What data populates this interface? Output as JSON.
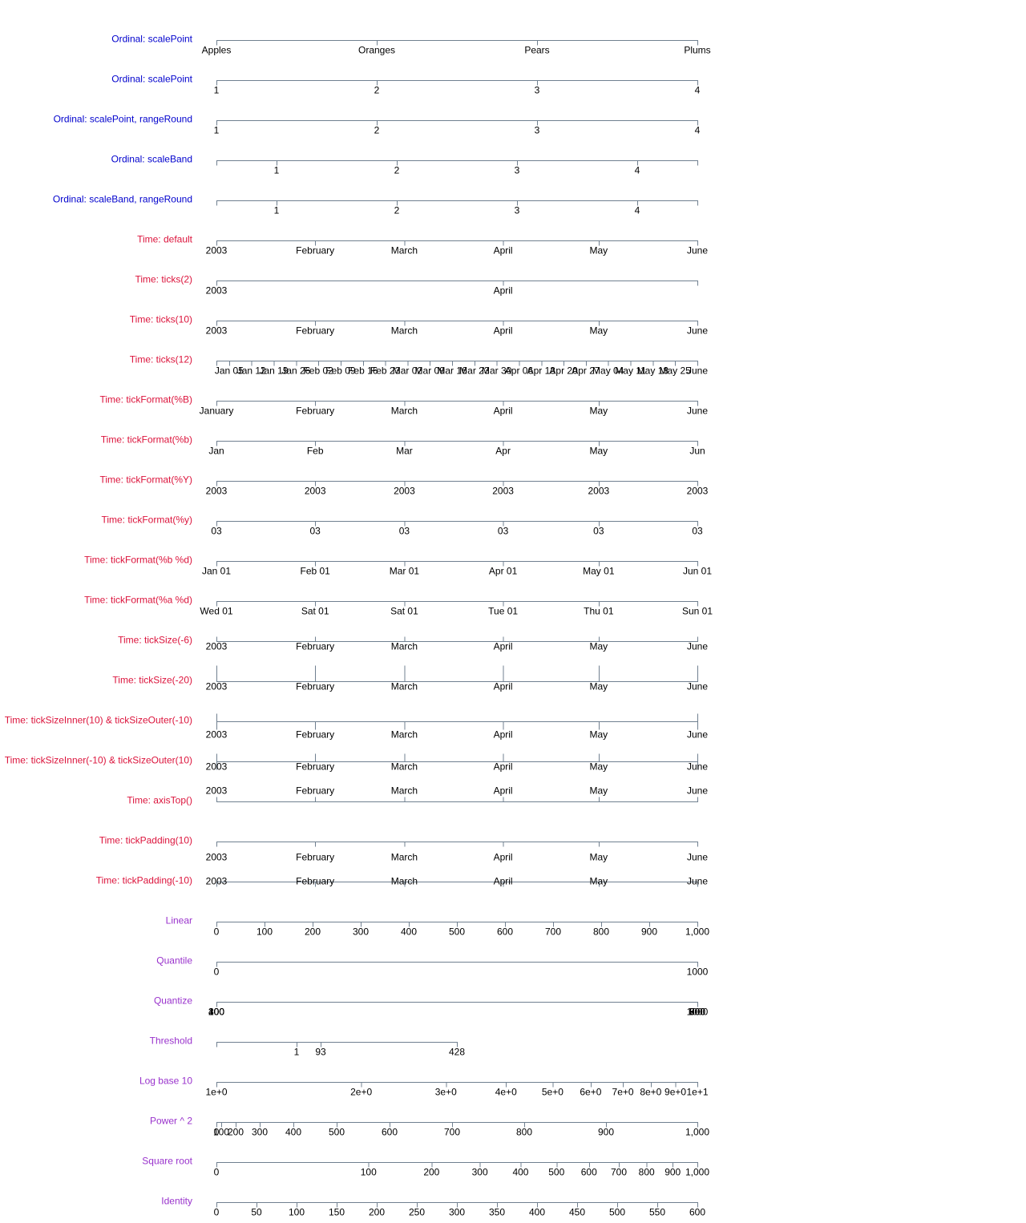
{
  "axes": [
    {
      "label": "Ordinal: scalePoint",
      "color": "#0000cd",
      "scale": "point",
      "domain": [
        "Apples",
        "Oranges",
        "Pears",
        "Plums"
      ]
    },
    {
      "label": "Ordinal: scalePoint",
      "color": "#0000cd",
      "scale": "point",
      "domain": [
        1,
        2,
        3,
        4
      ]
    },
    {
      "label": "Ordinal: scalePoint, rangeRound",
      "color": "#0000cd",
      "scale": "point",
      "domain": [
        1,
        2,
        3,
        4
      ]
    },
    {
      "label": "Ordinal: scaleBand",
      "color": "#0000cd",
      "scale": "band",
      "domain": [
        1,
        2,
        3,
        4
      ]
    },
    {
      "label": "Ordinal: scaleBand, rangeRound",
      "color": "#0000cd",
      "scale": "band",
      "domain": [
        1,
        2,
        3,
        4
      ]
    },
    {
      "label": "Time: default",
      "color": "#dc143c",
      "scale": "time",
      "domain": [
        "2003-01-01",
        "2003-06-01"
      ],
      "ticks": [
        {
          "value": "2003-01-01",
          "label": "2003"
        },
        {
          "value": "2003-02-01",
          "label": "February"
        },
        {
          "value": "2003-03-01",
          "label": "March"
        },
        {
          "value": "2003-04-01",
          "label": "April"
        },
        {
          "value": "2003-05-01",
          "label": "May"
        },
        {
          "value": "2003-06-01",
          "label": "June"
        }
      ]
    },
    {
      "label": "Time: ticks(2)",
      "color": "#dc143c",
      "scale": "time",
      "domain": [
        "2003-01-01",
        "2003-06-01"
      ],
      "ticks": [
        {
          "value": "2003-01-01",
          "label": "2003"
        },
        {
          "value": "2003-04-01",
          "label": "April"
        }
      ]
    },
    {
      "label": "Time: ticks(10)",
      "color": "#dc143c",
      "scale": "time",
      "domain": [
        "2003-01-01",
        "2003-06-01"
      ],
      "ticks": [
        {
          "value": "2003-01-01",
          "label": "2003"
        },
        {
          "value": "2003-02-01",
          "label": "February"
        },
        {
          "value": "2003-03-01",
          "label": "March"
        },
        {
          "value": "2003-04-01",
          "label": "April"
        },
        {
          "value": "2003-05-01",
          "label": "May"
        },
        {
          "value": "2003-06-01",
          "label": "June"
        }
      ]
    },
    {
      "label": "Time: ticks(12)",
      "color": "#dc143c",
      "scale": "time",
      "domain": [
        "2003-01-01",
        "2003-06-01"
      ],
      "ticks": [
        {
          "value": "2003-01-05",
          "label": "Jan 05"
        },
        {
          "value": "2003-01-12",
          "label": "Jan 12"
        },
        {
          "value": "2003-01-19",
          "label": "Jan 19"
        },
        {
          "value": "2003-01-26",
          "label": "Jan 26"
        },
        {
          "value": "2003-02-02",
          "label": "Feb 02"
        },
        {
          "value": "2003-02-09",
          "label": "Feb 09"
        },
        {
          "value": "2003-02-16",
          "label": "Feb 16"
        },
        {
          "value": "2003-02-23",
          "label": "Feb 23"
        },
        {
          "value": "2003-03-02",
          "label": "Mar 02"
        },
        {
          "value": "2003-03-09",
          "label": "Mar 09"
        },
        {
          "value": "2003-03-16",
          "label": "Mar 16"
        },
        {
          "value": "2003-03-23",
          "label": "Mar 23"
        },
        {
          "value": "2003-03-30",
          "label": "Mar 30"
        },
        {
          "value": "2003-04-06",
          "label": "Apr 06"
        },
        {
          "value": "2003-04-13",
          "label": "Apr 13"
        },
        {
          "value": "2003-04-20",
          "label": "Apr 20"
        },
        {
          "value": "2003-04-27",
          "label": "Apr 27"
        },
        {
          "value": "2003-05-04",
          "label": "May 04"
        },
        {
          "value": "2003-05-11",
          "label": "May 11"
        },
        {
          "value": "2003-05-18",
          "label": "May 18"
        },
        {
          "value": "2003-05-25",
          "label": "May 25"
        },
        {
          "value": "2003-06-01",
          "label": "June"
        }
      ]
    },
    {
      "label": "Time: tickFormat(%B)",
      "color": "#dc143c",
      "scale": "time",
      "domain": [
        "2003-01-01",
        "2003-06-01"
      ],
      "ticks": [
        {
          "value": "2003-01-01",
          "label": "January"
        },
        {
          "value": "2003-02-01",
          "label": "February"
        },
        {
          "value": "2003-03-01",
          "label": "March"
        },
        {
          "value": "2003-04-01",
          "label": "April"
        },
        {
          "value": "2003-05-01",
          "label": "May"
        },
        {
          "value": "2003-06-01",
          "label": "June"
        }
      ]
    },
    {
      "label": "Time: tickFormat(%b)",
      "color": "#dc143c",
      "scale": "time",
      "domain": [
        "2003-01-01",
        "2003-06-01"
      ],
      "ticks": [
        {
          "value": "2003-01-01",
          "label": "Jan"
        },
        {
          "value": "2003-02-01",
          "label": "Feb"
        },
        {
          "value": "2003-03-01",
          "label": "Mar"
        },
        {
          "value": "2003-04-01",
          "label": "Apr"
        },
        {
          "value": "2003-05-01",
          "label": "May"
        },
        {
          "value": "2003-06-01",
          "label": "Jun"
        }
      ]
    },
    {
      "label": "Time: tickFormat(%Y)",
      "color": "#dc143c",
      "scale": "time",
      "domain": [
        "2003-01-01",
        "2003-06-01"
      ],
      "ticks": [
        {
          "value": "2003-01-01",
          "label": "2003"
        },
        {
          "value": "2003-02-01",
          "label": "2003"
        },
        {
          "value": "2003-03-01",
          "label": "2003"
        },
        {
          "value": "2003-04-01",
          "label": "2003"
        },
        {
          "value": "2003-05-01",
          "label": "2003"
        },
        {
          "value": "2003-06-01",
          "label": "2003"
        }
      ]
    },
    {
      "label": "Time: tickFormat(%y)",
      "color": "#dc143c",
      "scale": "time",
      "domain": [
        "2003-01-01",
        "2003-06-01"
      ],
      "ticks": [
        {
          "value": "2003-01-01",
          "label": "03"
        },
        {
          "value": "2003-02-01",
          "label": "03"
        },
        {
          "value": "2003-03-01",
          "label": "03"
        },
        {
          "value": "2003-04-01",
          "label": "03"
        },
        {
          "value": "2003-05-01",
          "label": "03"
        },
        {
          "value": "2003-06-01",
          "label": "03"
        }
      ]
    },
    {
      "label": "Time: tickFormat(%b %d)",
      "color": "#dc143c",
      "scale": "time",
      "domain": [
        "2003-01-01",
        "2003-06-01"
      ],
      "ticks": [
        {
          "value": "2003-01-01",
          "label": "Jan 01"
        },
        {
          "value": "2003-02-01",
          "label": "Feb 01"
        },
        {
          "value": "2003-03-01",
          "label": "Mar 01"
        },
        {
          "value": "2003-04-01",
          "label": "Apr 01"
        },
        {
          "value": "2003-05-01",
          "label": "May 01"
        },
        {
          "value": "2003-06-01",
          "label": "Jun 01"
        }
      ]
    },
    {
      "label": "Time: tickFormat(%a %d)",
      "color": "#dc143c",
      "scale": "time",
      "domain": [
        "2003-01-01",
        "2003-06-01"
      ],
      "ticks": [
        {
          "value": "2003-01-01",
          "label": "Wed 01"
        },
        {
          "value": "2003-02-01",
          "label": "Sat 01"
        },
        {
          "value": "2003-03-01",
          "label": "Sat 01"
        },
        {
          "value": "2003-04-01",
          "label": "Tue 01"
        },
        {
          "value": "2003-05-01",
          "label": "Thu 01"
        },
        {
          "value": "2003-06-01",
          "label": "Sun 01"
        }
      ]
    },
    {
      "label": "Time: tickSize(-6)",
      "color": "#dc143c",
      "scale": "time",
      "tick_size_inner": -6,
      "tick_size_outer": -6,
      "domain": [
        "2003-01-01",
        "2003-06-01"
      ],
      "ticks": [
        {
          "value": "2003-01-01",
          "label": "2003"
        },
        {
          "value": "2003-02-01",
          "label": "February"
        },
        {
          "value": "2003-03-01",
          "label": "March"
        },
        {
          "value": "2003-04-01",
          "label": "April"
        },
        {
          "value": "2003-05-01",
          "label": "May"
        },
        {
          "value": "2003-06-01",
          "label": "June"
        }
      ]
    },
    {
      "label": "Time: tickSize(-20)",
      "color": "#dc143c",
      "scale": "time",
      "tick_size_inner": -20,
      "tick_size_outer": -20,
      "domain": [
        "2003-01-01",
        "2003-06-01"
      ],
      "ticks": [
        {
          "value": "2003-01-01",
          "label": "2003"
        },
        {
          "value": "2003-02-01",
          "label": "February"
        },
        {
          "value": "2003-03-01",
          "label": "March"
        },
        {
          "value": "2003-04-01",
          "label": "April"
        },
        {
          "value": "2003-05-01",
          "label": "May"
        },
        {
          "value": "2003-06-01",
          "label": "June"
        }
      ]
    },
    {
      "label": "Time: tickSizeInner(10) & tickSizeOuter(-10)",
      "color": "#dc143c",
      "scale": "time",
      "tick_size_inner": 10,
      "tick_size_outer": -10,
      "domain": [
        "2003-01-01",
        "2003-06-01"
      ],
      "ticks": [
        {
          "value": "2003-01-01",
          "label": "2003"
        },
        {
          "value": "2003-02-01",
          "label": "February"
        },
        {
          "value": "2003-03-01",
          "label": "March"
        },
        {
          "value": "2003-04-01",
          "label": "April"
        },
        {
          "value": "2003-05-01",
          "label": "May"
        },
        {
          "value": "2003-06-01",
          "label": "June"
        }
      ]
    },
    {
      "label": "Time: tickSizeInner(-10) & tickSizeOuter(10)",
      "color": "#dc143c",
      "scale": "time",
      "tick_size_inner": -10,
      "tick_size_outer": 10,
      "domain": [
        "2003-01-01",
        "2003-06-01"
      ],
      "ticks": [
        {
          "value": "2003-01-01",
          "label": "2003"
        },
        {
          "value": "2003-02-01",
          "label": "February"
        },
        {
          "value": "2003-03-01",
          "label": "March"
        },
        {
          "value": "2003-04-01",
          "label": "April"
        },
        {
          "value": "2003-05-01",
          "label": "May"
        },
        {
          "value": "2003-06-01",
          "label": "June"
        }
      ]
    },
    {
      "label": "Time: axisTop()",
      "color": "#dc143c",
      "scale": "time",
      "orient": "top",
      "domain": [
        "2003-01-01",
        "2003-06-01"
      ],
      "ticks": [
        {
          "value": "2003-01-01",
          "label": "2003"
        },
        {
          "value": "2003-02-01",
          "label": "February"
        },
        {
          "value": "2003-03-01",
          "label": "March"
        },
        {
          "value": "2003-04-01",
          "label": "April"
        },
        {
          "value": "2003-05-01",
          "label": "May"
        },
        {
          "value": "2003-06-01",
          "label": "June"
        }
      ]
    },
    {
      "label": "Time: tickPadding(10)",
      "color": "#dc143c",
      "scale": "time",
      "tick_padding": 10,
      "domain": [
        "2003-01-01",
        "2003-06-01"
      ],
      "ticks": [
        {
          "value": "2003-01-01",
          "label": "2003"
        },
        {
          "value": "2003-02-01",
          "label": "February"
        },
        {
          "value": "2003-03-01",
          "label": "March"
        },
        {
          "value": "2003-04-01",
          "label": "April"
        },
        {
          "value": "2003-05-01",
          "label": "May"
        },
        {
          "value": "2003-06-01",
          "label": "June"
        }
      ]
    },
    {
      "label": "Time: tickPadding(-10)",
      "color": "#dc143c",
      "scale": "time",
      "tick_padding": -10,
      "domain": [
        "2003-01-01",
        "2003-06-01"
      ],
      "ticks": [
        {
          "value": "2003-01-01",
          "label": "2003"
        },
        {
          "value": "2003-02-01",
          "label": "February"
        },
        {
          "value": "2003-03-01",
          "label": "March"
        },
        {
          "value": "2003-04-01",
          "label": "April"
        },
        {
          "value": "2003-05-01",
          "label": "May"
        },
        {
          "value": "2003-06-01",
          "label": "June"
        }
      ]
    },
    {
      "label": "Linear",
      "color": "#9932cc",
      "scale": "linear",
      "domain": [
        0,
        1000
      ],
      "ticks": [
        0,
        100,
        200,
        300,
        400,
        500,
        600,
        700,
        800,
        900,
        {
          "value": 1000,
          "label": "1,000"
        }
      ]
    },
    {
      "label": "Quantile",
      "color": "#9932cc",
      "scale": "linear",
      "domain": [
        0,
        1000
      ],
      "ticks": [
        0,
        1000
      ]
    },
    {
      "label": "Quantize",
      "color": "#9932cc",
      "scale": "quantize",
      "domain": [
        0,
        1000
      ],
      "ticks": [
        100,
        200,
        300,
        400,
        600,
        700,
        800,
        900,
        1000
      ]
    },
    {
      "label": "Threshold",
      "color": "#9932cc",
      "scale": "threshold",
      "domain": [
        1,
        93,
        428
      ],
      "ticks": [
        1,
        93,
        428
      ]
    },
    {
      "label": "Log base 10",
      "color": "#9932cc",
      "scale": "log",
      "domain": [
        1,
        10
      ],
      "ticks": [
        {
          "value": 1,
          "label": "1e+0"
        },
        {
          "value": 2,
          "label": "2e+0"
        },
        {
          "value": 3,
          "label": "3e+0"
        },
        {
          "value": 4,
          "label": "4e+0"
        },
        {
          "value": 5,
          "label": "5e+0"
        },
        {
          "value": 6,
          "label": "6e+0"
        },
        {
          "value": 7,
          "label": "7e+0"
        },
        {
          "value": 8,
          "label": "8e+0"
        },
        {
          "value": 9,
          "label": "9e+0"
        },
        {
          "value": 10,
          "label": "1e+1"
        }
      ]
    },
    {
      "label": "Power ^ 2",
      "color": "#9932cc",
      "scale": "pow",
      "exponent": 2,
      "domain": [
        0,
        1000
      ],
      "ticks": [
        0,
        100,
        200,
        300,
        400,
        500,
        600,
        700,
        800,
        900,
        {
          "value": 1000,
          "label": "1,000"
        }
      ]
    },
    {
      "label": "Square root",
      "color": "#9932cc",
      "scale": "pow",
      "exponent": 0.5,
      "domain": [
        0,
        1000
      ],
      "ticks": [
        0,
        100,
        200,
        300,
        400,
        500,
        600,
        700,
        800,
        900,
        {
          "value": 1000,
          "label": "1,000"
        }
      ]
    },
    {
      "label": "Identity",
      "color": "#9932cc",
      "scale": "linear",
      "domain": [
        0,
        600
      ],
      "ticks": [
        0,
        50,
        100,
        150,
        200,
        250,
        300,
        350,
        400,
        450,
        500,
        550,
        600
      ]
    }
  ]
}
